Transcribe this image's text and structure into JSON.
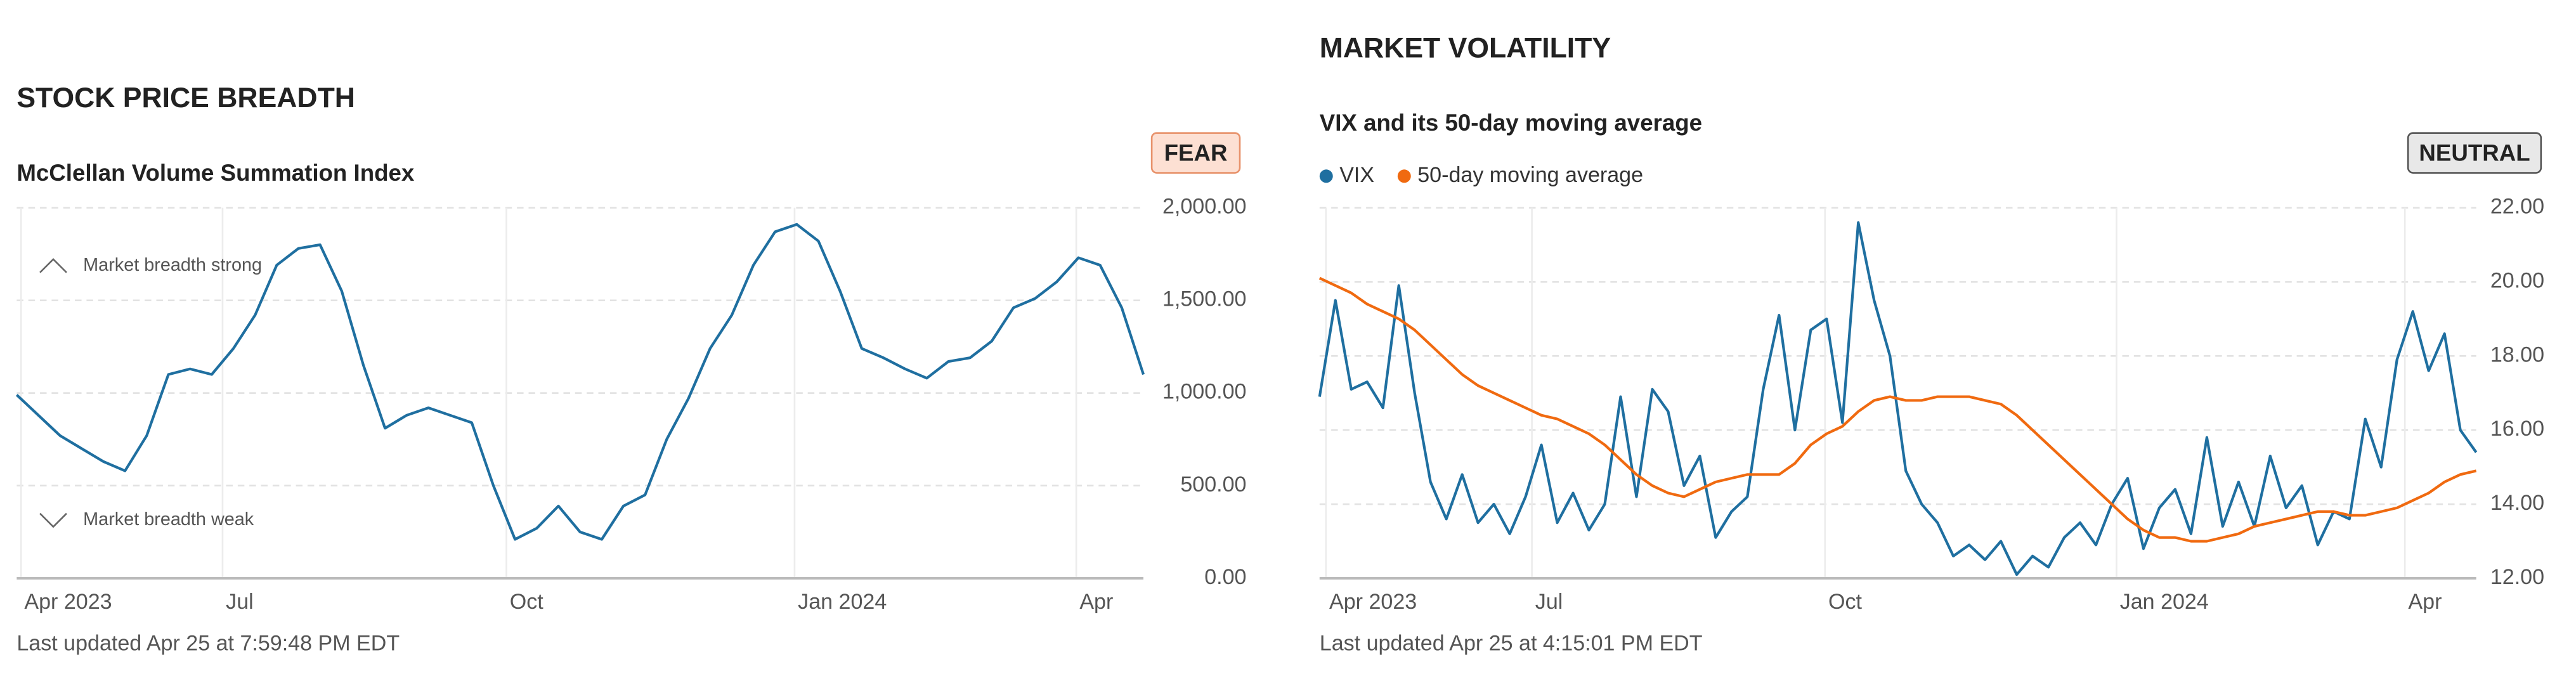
{
  "chart_data": [
    {
      "type": "line",
      "title": "STOCK PRICE BREADTH",
      "subtitle": "McClellan Volume Summation Index",
      "badge": "FEAR",
      "annotations": [
        "Market breadth strong",
        "Market breadth weak"
      ],
      "footer": "Last updated Apr 25 at 7:59:48 PM EDT",
      "color": "#1f6fa0",
      "values": [
        990,
        880,
        770,
        700,
        630,
        580,
        770,
        1100,
        1130,
        1100,
        1240,
        1420,
        1690,
        1780,
        1800,
        1550,
        1150,
        810,
        880,
        920,
        880,
        840,
        500,
        210,
        270,
        390,
        250,
        210,
        390,
        450,
        750,
        970,
        1240,
        1420,
        1690,
        1870,
        1910,
        1820,
        1550,
        1240,
        1190,
        1130,
        1080,
        1170,
        1190,
        1280,
        1460,
        1510,
        1600,
        1730,
        1690,
        1460,
        1100
      ],
      "xlim": [
        0,
        52
      ],
      "xticks": [
        {
          "value": 0.2,
          "label": "Apr 2023"
        },
        {
          "value": 9.5,
          "label": "Jul"
        },
        {
          "value": 22.6,
          "label": "Oct"
        },
        {
          "value": 35.9,
          "label": "Jan 2024"
        },
        {
          "value": 48.9,
          "label": "Apr"
        }
      ],
      "ylim": [
        0,
        2000
      ],
      "yticks": [
        {
          "value": 0,
          "label": "0.00"
        },
        {
          "value": 500,
          "label": "500.00"
        },
        {
          "value": 1000,
          "label": "1,000.00"
        },
        {
          "value": 1500,
          "label": "1,500.00"
        },
        {
          "value": 2000,
          "label": "2,000.00"
        }
      ],
      "grid": true
    },
    {
      "type": "line",
      "title": "MARKET VOLATILITY",
      "subtitle": "VIX and its 50-day moving average",
      "badge": "NEUTRAL",
      "footer": "Last updated Apr 25 at 4:15:01 PM EDT",
      "series": [
        {
          "name": "VIX",
          "color": "#1f6fa0",
          "values": [
            16.9,
            19.5,
            17.1,
            17.3,
            16.6,
            19.9,
            17.0,
            14.6,
            13.6,
            14.8,
            13.5,
            14.0,
            13.2,
            14.2,
            15.6,
            13.5,
            14.3,
            13.3,
            14.0,
            16.9,
            14.2,
            17.1,
            16.5,
            14.5,
            15.3,
            13.1,
            13.8,
            14.2,
            17.1,
            19.1,
            16.0,
            18.7,
            19.0,
            16.2,
            21.6,
            19.5,
            18.0,
            14.9,
            14.0,
            13.5,
            12.6,
            12.9,
            12.5,
            13.0,
            12.1,
            12.6,
            12.3,
            13.1,
            13.5,
            12.9,
            14.0,
            14.7,
            12.8,
            13.9,
            14.4,
            13.2,
            15.8,
            13.4,
            14.6,
            13.4,
            15.3,
            13.9,
            14.5,
            12.9,
            13.8,
            13.6,
            16.3,
            15.0,
            17.9,
            19.2,
            17.6,
            18.6,
            16.0,
            15.4
          ]
        },
        {
          "name": "50-day moving average",
          "color": "#f06a10",
          "values": [
            20.1,
            19.9,
            19.7,
            19.4,
            19.2,
            19.0,
            18.7,
            18.3,
            17.9,
            17.5,
            17.2,
            17.0,
            16.8,
            16.6,
            16.4,
            16.3,
            16.1,
            15.9,
            15.6,
            15.2,
            14.8,
            14.5,
            14.3,
            14.2,
            14.4,
            14.6,
            14.7,
            14.8,
            14.8,
            14.8,
            15.1,
            15.6,
            15.9,
            16.1,
            16.5,
            16.8,
            16.9,
            16.8,
            16.8,
            16.9,
            16.9,
            16.9,
            16.8,
            16.7,
            16.4,
            16.0,
            15.6,
            15.2,
            14.8,
            14.4,
            14.0,
            13.6,
            13.3,
            13.1,
            13.1,
            13.0,
            13.0,
            13.1,
            13.2,
            13.4,
            13.5,
            13.6,
            13.7,
            13.8,
            13.8,
            13.7,
            13.7,
            13.8,
            13.9,
            14.1,
            14.3,
            14.6,
            14.8,
            14.9
          ]
        }
      ],
      "xlim": [
        0,
        73
      ],
      "xticks": [
        {
          "value": 0.4,
          "label": "Apr 2023"
        },
        {
          "value": 13.4,
          "label": "Jul"
        },
        {
          "value": 31.9,
          "label": "Oct"
        },
        {
          "value": 50.3,
          "label": "Jan 2024"
        },
        {
          "value": 68.5,
          "label": "Apr"
        }
      ],
      "ylim": [
        12,
        22
      ],
      "yticks": [
        {
          "value": 12,
          "label": "12.00"
        },
        {
          "value": 14,
          "label": "14.00"
        },
        {
          "value": 16,
          "label": "16.00"
        },
        {
          "value": 18,
          "label": "18.00"
        },
        {
          "value": 20,
          "label": "20.00"
        },
        {
          "value": 22,
          "label": "22.00"
        }
      ],
      "grid": true
    }
  ]
}
